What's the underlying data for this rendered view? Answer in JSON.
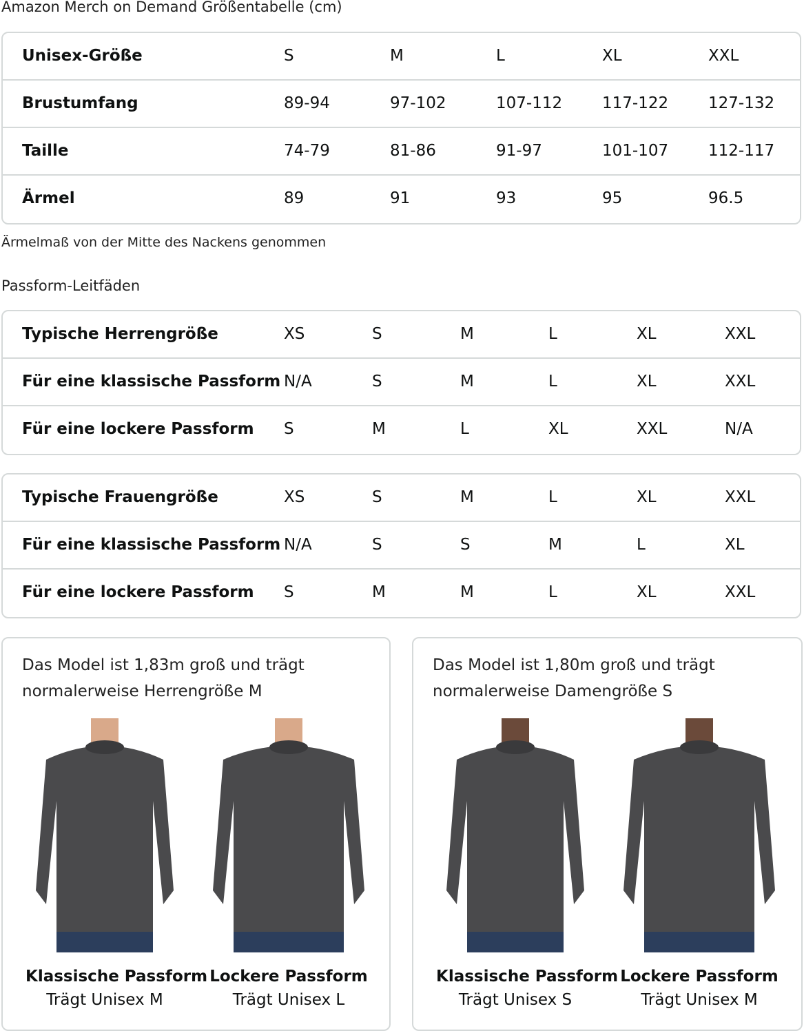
{
  "title": "Amazon Merch on Demand Größentabelle (cm)",
  "unisex_table": {
    "rows": [
      {
        "label": "Unisex-Größe",
        "values": [
          "S",
          "M",
          "L",
          "XL",
          "XXL"
        ]
      },
      {
        "label": "Brustumfang",
        "values": [
          "89-94",
          "97-102",
          "107-112",
          "117-122",
          "127-132"
        ]
      },
      {
        "label": "Taille",
        "values": [
          "74-79",
          "81-86",
          "91-97",
          "101-107",
          "112-117"
        ]
      },
      {
        "label": "Ärmel",
        "values": [
          "89",
          "91",
          "93",
          "95",
          "96.5"
        ]
      }
    ]
  },
  "note": "Ärmelmaß von der Mitte des Nackens genommen",
  "fit_title": "Passform-Leitfäden",
  "men_table": {
    "rows": [
      {
        "label": "Typische Herrengröße",
        "values": [
          "XS",
          "S",
          "M",
          "L",
          "XL",
          "XXL"
        ]
      },
      {
        "label": "Für eine klassische Passform",
        "values": [
          "N/A",
          "S",
          "M",
          "L",
          "XL",
          "XXL"
        ]
      },
      {
        "label": "Für eine lockere Passform",
        "values": [
          "S",
          "M",
          "L",
          "XL",
          "XXL",
          "N/A"
        ]
      }
    ]
  },
  "women_table": {
    "rows": [
      {
        "label": "Typische Frauengröße",
        "values": [
          "XS",
          "S",
          "M",
          "L",
          "XL",
          "XXL"
        ]
      },
      {
        "label": "Für eine klassische Passform",
        "values": [
          "N/A",
          "S",
          "S",
          "M",
          "L",
          "XL"
        ]
      },
      {
        "label": "Für eine lockere Passform",
        "values": [
          "S",
          "M",
          "M",
          "L",
          "XL",
          "XXL"
        ]
      }
    ]
  },
  "cards": [
    {
      "text": "Das Model ist 1,83m groß und trägt normalerweise Herrengröße M",
      "figures": [
        {
          "fit": "Klassische Passform",
          "wears": "Trägt Unisex M"
        },
        {
          "fit": "Lockere Passform",
          "wears": "Trägt Unisex L"
        }
      ]
    },
    {
      "text": "Das Model ist 1,80m groß und trägt normalerweise Damengröße S",
      "figures": [
        {
          "fit": "Klassische Passform",
          "wears": "Trägt Unisex S"
        },
        {
          "fit": "Lockere Passform",
          "wears": "Trägt Unisex M"
        }
      ]
    }
  ],
  "colors": {
    "border": "#d5d9d9",
    "sweatshirt": "#4a4a4c",
    "jeans": "#2c3e5c"
  }
}
